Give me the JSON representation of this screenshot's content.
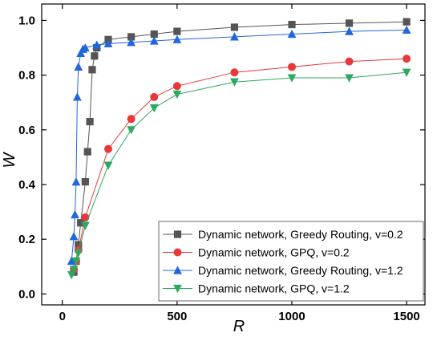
{
  "chart_data": {
    "type": "line",
    "xlabel": "R",
    "ylabel": "W",
    "xlim": [
      -90,
      1580
    ],
    "ylim": [
      -0.04,
      1.06
    ],
    "xticks": [
      0,
      500,
      1000,
      1500
    ],
    "yticks": [
      0.0,
      0.2,
      0.4,
      0.6,
      0.8,
      1.0
    ],
    "xtick_labels": [
      "0",
      "500",
      "1000",
      "1500"
    ],
    "ytick_labels": [
      "0.0",
      "0.2",
      "0.4",
      "0.6",
      "0.8",
      "1.0"
    ],
    "grid": false,
    "legend_position": "bottom-right",
    "series": [
      {
        "name": "Dynamic network, Greedy Routing, v=0.2",
        "color": "#555555",
        "marker": "square",
        "x": [
          50,
          60,
          70,
          80,
          100,
          110,
          120,
          130,
          140,
          150,
          200,
          300,
          400,
          500,
          750,
          1000,
          1250,
          1500
        ],
        "y": [
          0.08,
          0.12,
          0.18,
          0.26,
          0.41,
          0.52,
          0.63,
          0.82,
          0.87,
          0.9,
          0.93,
          0.94,
          0.95,
          0.96,
          0.975,
          0.985,
          0.99,
          0.995
        ]
      },
      {
        "name": "Dynamic network, GPQ, v=0.2",
        "color": "#e8393a",
        "marker": "circle",
        "x": [
          50,
          60,
          70,
          100,
          200,
          300,
          400,
          500,
          750,
          1000,
          1250,
          1500
        ],
        "y": [
          0.09,
          0.12,
          0.16,
          0.28,
          0.53,
          0.64,
          0.72,
          0.76,
          0.81,
          0.83,
          0.85,
          0.86
        ]
      },
      {
        "name": "Dynamic network, Greedy Routing, v=1.2",
        "color": "#2266dd",
        "marker": "triangle-up",
        "x": [
          40,
          50,
          55,
          60,
          65,
          70,
          80,
          90,
          100,
          150,
          200,
          300,
          400,
          500,
          750,
          1000,
          1250,
          1500
        ],
        "y": [
          0.12,
          0.21,
          0.29,
          0.41,
          0.72,
          0.83,
          0.88,
          0.895,
          0.9,
          0.91,
          0.915,
          0.92,
          0.925,
          0.93,
          0.94,
          0.95,
          0.96,
          0.965
        ]
      },
      {
        "name": "Dynamic network, GPQ, v=1.2",
        "color": "#2ea860",
        "marker": "triangle-down",
        "x": [
          40,
          50,
          60,
          70,
          100,
          200,
          300,
          400,
          500,
          750,
          1000,
          1250,
          1500
        ],
        "y": [
          0.07,
          0.09,
          0.12,
          0.15,
          0.25,
          0.47,
          0.6,
          0.68,
          0.73,
          0.775,
          0.79,
          0.79,
          0.81
        ]
      }
    ]
  }
}
